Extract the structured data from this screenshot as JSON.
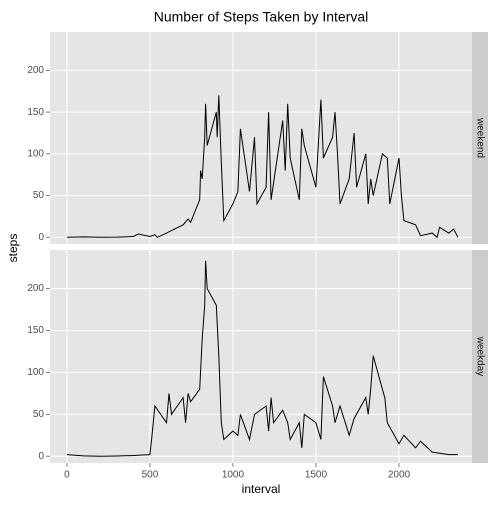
{
  "chart_data": {
    "type": "line",
    "title": "Number of Steps Taken by Interval",
    "x_label": "interval",
    "y_label": "steps",
    "xlim": [
      -102,
      2440
    ],
    "xticks": [
      0,
      500,
      1000,
      1500,
      2000
    ],
    "ylim": [
      -8,
      246
    ],
    "yticks": [
      0,
      50,
      100,
      150,
      200
    ],
    "grid": true,
    "color": "#000000",
    "series": [
      {
        "name": "weekend",
        "color": "#000000",
        "x": [
          0,
          100,
          200,
          300,
          400,
          430,
          500,
          530,
          545,
          600,
          630,
          700,
          730,
          745,
          800,
          805,
          815,
          830,
          835,
          845,
          900,
          905,
          915,
          930,
          945,
          1000,
          1030,
          1045,
          1100,
          1130,
          1145,
          1200,
          1215,
          1230,
          1300,
          1315,
          1330,
          1345,
          1400,
          1415,
          1430,
          1500,
          1530,
          1545,
          1600,
          1615,
          1630,
          1645,
          1700,
          1730,
          1745,
          1800,
          1815,
          1830,
          1845,
          1900,
          1930,
          1945,
          2000,
          2015,
          2030,
          2100,
          2130,
          2200,
          2230,
          2245,
          2300,
          2330,
          2355
        ],
        "values": [
          0,
          0.5,
          0,
          0.3,
          1,
          4,
          1,
          3,
          0,
          5,
          8,
          15,
          22,
          18,
          45,
          80,
          70,
          120,
          160,
          110,
          150,
          120,
          170,
          90,
          20,
          40,
          55,
          130,
          55,
          120,
          40,
          60,
          150,
          45,
          140,
          80,
          160,
          95,
          45,
          130,
          110,
          60,
          165,
          95,
          120,
          150,
          100,
          40,
          70,
          125,
          60,
          100,
          40,
          70,
          50,
          100,
          95,
          40,
          95,
          50,
          20,
          15,
          2,
          5,
          0,
          12,
          5,
          10,
          0
        ]
      },
      {
        "name": "weekday",
        "color": "#000000",
        "x": [
          0,
          100,
          200,
          300,
          400,
          500,
          510,
          530,
          600,
          615,
          630,
          700,
          715,
          730,
          745,
          800,
          815,
          830,
          835,
          845,
          900,
          915,
          930,
          945,
          1000,
          1030,
          1045,
          1100,
          1130,
          1200,
          1215,
          1230,
          1245,
          1300,
          1330,
          1345,
          1400,
          1415,
          1430,
          1500,
          1530,
          1545,
          1600,
          1615,
          1645,
          1700,
          1730,
          1800,
          1815,
          1830,
          1845,
          1900,
          1915,
          1930,
          2000,
          2030,
          2100,
          2130,
          2200,
          2300,
          2355
        ],
        "values": [
          2,
          0.5,
          0,
          0.3,
          1,
          2,
          20,
          60,
          40,
          75,
          50,
          70,
          40,
          75,
          65,
          80,
          140,
          180,
          233,
          200,
          180,
          120,
          40,
          20,
          30,
          25,
          50,
          20,
          50,
          60,
          30,
          70,
          40,
          55,
          40,
          20,
          40,
          10,
          50,
          40,
          20,
          95,
          60,
          40,
          60,
          25,
          45,
          70,
          50,
          80,
          120,
          80,
          70,
          40,
          15,
          25,
          10,
          18,
          5,
          2,
          2
        ]
      }
    ]
  }
}
